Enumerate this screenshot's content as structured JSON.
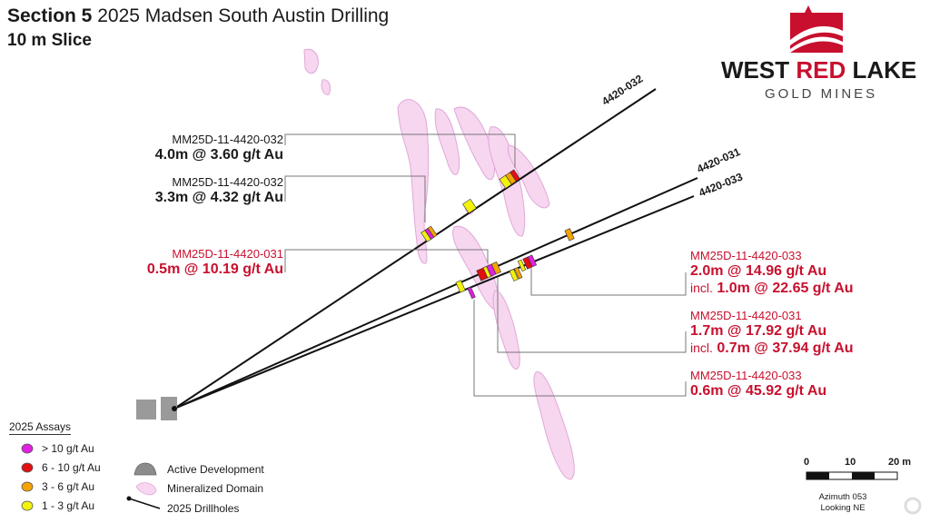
{
  "title": {
    "bold": "Section 5",
    "rest": " 2025 Madsen South Austin Drilling"
  },
  "subtitle": "10 m Slice",
  "logo": {
    "line1_a": "WEST ",
    "line1_b": "RED",
    "line1_c": " LAKE",
    "line2": "GOLD MINES",
    "brand_red": "#c8102e"
  },
  "drillholes": [
    {
      "id": "4420-032"
    },
    {
      "id": "4420-031"
    },
    {
      "id": "4420-033"
    }
  ],
  "callouts": {
    "c1": {
      "hole": "MM25D-11-4420-032",
      "intercept": "4.0m @ 3.60 g/t Au"
    },
    "c2": {
      "hole": "MM25D-11-4420-032",
      "intercept": "3.3m @ 4.32 g/t Au"
    },
    "c3": {
      "hole": "MM25D-11-4420-031",
      "intercept": "0.5m @ 10.19 g/t Au"
    },
    "c4": {
      "hole": "MM25D-11-4420-033",
      "intercept": "2.0m @ 14.96 g/t Au",
      "incl_word": "incl.",
      "incl_value": "1.0m @ 22.65 g/t Au"
    },
    "c5": {
      "hole": "MM25D-11-4420-031",
      "intercept": "1.7m @ 17.92 g/t Au",
      "incl_word": "incl.",
      "incl_value": "0.7m @ 37.94 g/t Au"
    },
    "c6": {
      "hole": "MM25D-11-4420-033",
      "intercept": "0.6m @ 45.92 g/t Au"
    }
  },
  "legend": {
    "title": "2025 Assays",
    "items": [
      {
        "label": "> 10 g/t Au",
        "color": "#e020e0"
      },
      {
        "label": "6 - 10 g/t Au",
        "color": "#e01010"
      },
      {
        "label": "3 - 6 g/t Au",
        "color": "#f5a300"
      },
      {
        "label": "1 - 3 g/t Au",
        "color": "#f2f20a"
      }
    ],
    "active_development": "Active Development",
    "mineralized_domain": "Mineralized Domain",
    "drillholes": "2025 Drillholes"
  },
  "scale": {
    "ticks": [
      "0",
      "10",
      "20 m"
    ]
  },
  "orientation": {
    "azimuth": "Azimuth 053",
    "looking": "Looking NE"
  }
}
